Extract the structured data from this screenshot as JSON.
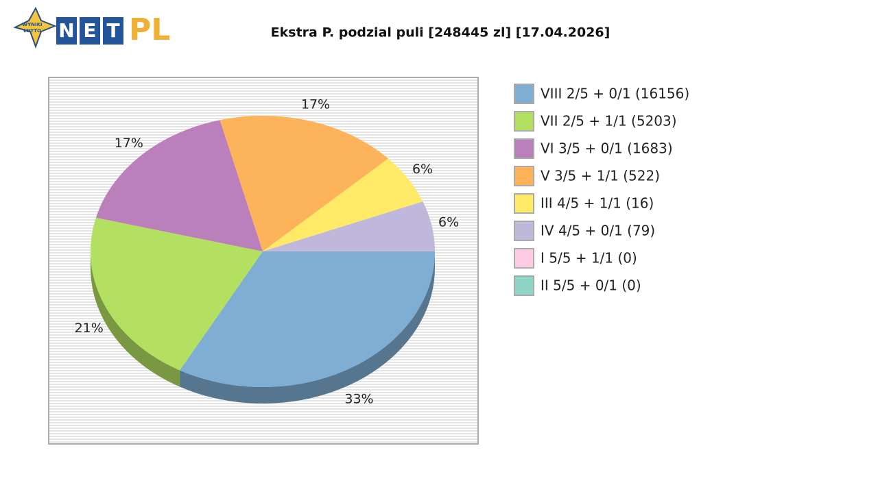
{
  "logo": {
    "badge": [
      "WYNIKI",
      "LOTTO"
    ],
    "letters": [
      "N",
      "E",
      "T"
    ],
    "suffix": "PL"
  },
  "chart_data": {
    "type": "pie",
    "title": "Ekstra P. podzial puli [248445 zl] [17.04.2026]",
    "categories": [
      "VIII 2/5 + 0/1 (16156)",
      "VII 2/5 + 1/1 (5203)",
      "VI 3/5 + 0/1 (1683)",
      "V 3/5 + 1/1 (522)",
      "III 4/5 + 1/1 (16)",
      "IV 4/5 + 0/1 (79)",
      "I 5/5 + 1/1 (0)",
      "II 5/5 + 0/1 (0)"
    ],
    "values": [
      33,
      21,
      17,
      17,
      6,
      6,
      0,
      0
    ],
    "value_labels": [
      "33%",
      "21%",
      "17%",
      "17%",
      "6%",
      "6%",
      null,
      null
    ],
    "colors": [
      "#7eaed4",
      "#b3e061",
      "#bb7fbb",
      "#fdb35a",
      "#ffea67",
      "#bfb8da",
      "#fdcbe4",
      "#8ed5c8"
    ],
    "legend": "right"
  }
}
